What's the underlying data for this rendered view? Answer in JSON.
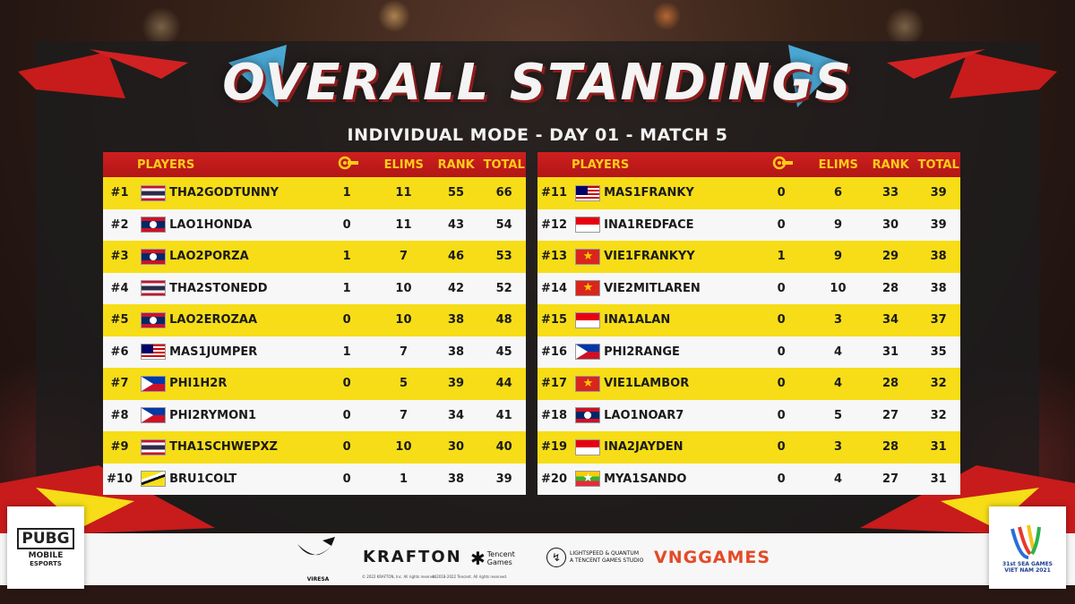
{
  "title": "OVERALL STANDINGS",
  "subtitle": "INDIVIDUAL MODE - DAY 01 - MATCH 5",
  "headers": {
    "players": "PLAYERS",
    "finishes_icon": "finishes-icon",
    "elims": "ELIMS",
    "rank": "RANK",
    "total": "TOTAL"
  },
  "left_rows": [
    {
      "pos": "#1",
      "flag": "tha",
      "name": "THA2GODTUNNY",
      "fin": "1",
      "elims": "11",
      "rank": "55",
      "total": "66"
    },
    {
      "pos": "#2",
      "flag": "lao",
      "name": "LAO1HONDA",
      "fin": "0",
      "elims": "11",
      "rank": "43",
      "total": "54"
    },
    {
      "pos": "#3",
      "flag": "lao",
      "name": "LAO2PORZA",
      "fin": "1",
      "elims": "7",
      "rank": "46",
      "total": "53"
    },
    {
      "pos": "#4",
      "flag": "tha",
      "name": "THA2STONEDD",
      "fin": "1",
      "elims": "10",
      "rank": "42",
      "total": "52"
    },
    {
      "pos": "#5",
      "flag": "lao",
      "name": "LAO2EROZAA",
      "fin": "0",
      "elims": "10",
      "rank": "38",
      "total": "48"
    },
    {
      "pos": "#6",
      "flag": "mas",
      "name": "MAS1JUMPER",
      "fin": "1",
      "elims": "7",
      "rank": "38",
      "total": "45"
    },
    {
      "pos": "#7",
      "flag": "phi",
      "name": "PHI1H2R",
      "fin": "0",
      "elims": "5",
      "rank": "39",
      "total": "44"
    },
    {
      "pos": "#8",
      "flag": "phi",
      "name": "PHI2RYMON1",
      "fin": "0",
      "elims": "7",
      "rank": "34",
      "total": "41"
    },
    {
      "pos": "#9",
      "flag": "tha",
      "name": "THA1SCHWEPXZ",
      "fin": "0",
      "elims": "10",
      "rank": "30",
      "total": "40"
    },
    {
      "pos": "#10",
      "flag": "bru",
      "name": "BRU1COLT",
      "fin": "0",
      "elims": "1",
      "rank": "38",
      "total": "39"
    }
  ],
  "right_rows": [
    {
      "pos": "#11",
      "flag": "mas",
      "name": "MAS1FRANKY",
      "fin": "0",
      "elims": "6",
      "rank": "33",
      "total": "39"
    },
    {
      "pos": "#12",
      "flag": "ina",
      "name": "INA1REDFACE",
      "fin": "0",
      "elims": "9",
      "rank": "30",
      "total": "39"
    },
    {
      "pos": "#13",
      "flag": "vie",
      "name": "VIE1FRANKYY",
      "fin": "1",
      "elims": "9",
      "rank": "29",
      "total": "38"
    },
    {
      "pos": "#14",
      "flag": "vie",
      "name": "VIE2MITLAREN",
      "fin": "0",
      "elims": "10",
      "rank": "28",
      "total": "38"
    },
    {
      "pos": "#15",
      "flag": "ina",
      "name": "INA1ALAN",
      "fin": "0",
      "elims": "3",
      "rank": "34",
      "total": "37"
    },
    {
      "pos": "#16",
      "flag": "phi",
      "name": "PHI2RANGE",
      "fin": "0",
      "elims": "4",
      "rank": "31",
      "total": "35"
    },
    {
      "pos": "#17",
      "flag": "vie",
      "name": "VIE1LAMBOR",
      "fin": "0",
      "elims": "4",
      "rank": "28",
      "total": "32"
    },
    {
      "pos": "#18",
      "flag": "lao",
      "name": "LAO1NOAR7",
      "fin": "0",
      "elims": "5",
      "rank": "27",
      "total": "32"
    },
    {
      "pos": "#19",
      "flag": "ina",
      "name": "INA2JAYDEN",
      "fin": "0",
      "elims": "3",
      "rank": "28",
      "total": "31"
    },
    {
      "pos": "#20",
      "flag": "mya",
      "name": "MYA1SANDO",
      "fin": "0",
      "elims": "4",
      "rank": "27",
      "total": "31"
    }
  ],
  "footer": {
    "pubg_logo": {
      "line1": "PUBG",
      "line2": "MOBILE",
      "line3": "ESPORTS"
    },
    "viresa": "VIRESA",
    "krafton": "KRAFTON",
    "tencent": {
      "line1": "Tencent",
      "line2": "Games"
    },
    "lightspeed": {
      "line1": "LIGHTSPEED & QUANTUM",
      "line2": "A TENCENT GAMES STUDIO"
    },
    "vng": "VNGGAMES",
    "copyright1": "© 2022 KRAFTON, Inc. All rights reserved.",
    "copyright2": "© 2018-2022 Tencent. All rights reserved.",
    "sea_games": {
      "line1": "31st SEA GAMES",
      "line2": "VIET NAM 2021"
    }
  },
  "colors": {
    "header_red": "#cf1f1f",
    "header_text": "#ffcc1a",
    "row_yellow": "#f6dd17",
    "row_white": "#f7f7f7",
    "accent_blue": "#4fb6e8"
  }
}
